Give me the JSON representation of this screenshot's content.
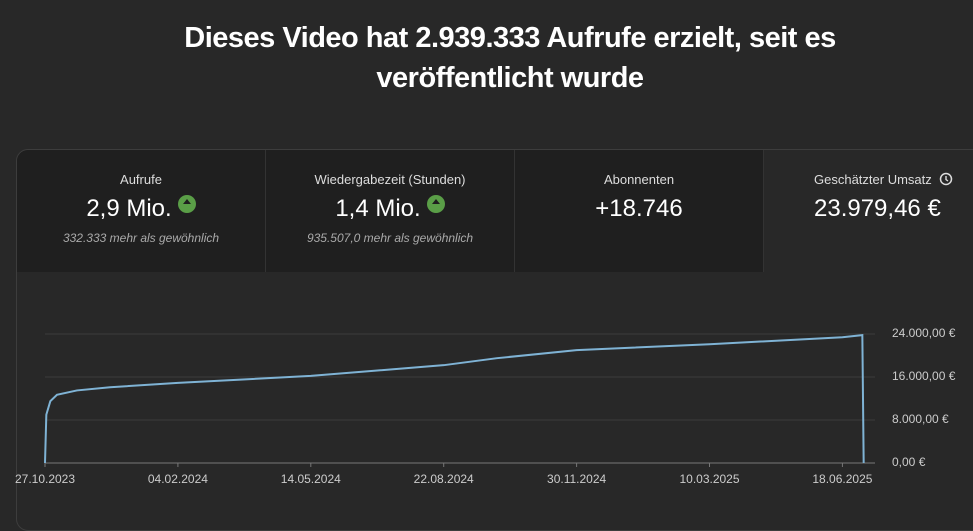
{
  "header": {
    "title": "Dieses Video hat 2.939.333 Aufrufe erzielt, seit es veröffentlicht wurde"
  },
  "cards": [
    {
      "label": "Aufrufe",
      "value": "2,9 Mio.",
      "note": "332.333 mehr als gewöhnlich"
    },
    {
      "label": "Wiedergabezeit (Stunden)",
      "value": "1,4 Mio.",
      "note": "935.507,0 mehr als gewöhnlich"
    },
    {
      "label": "Abonnenten",
      "value": "+18.746"
    },
    {
      "label": "Geschätzter Umsatz",
      "value": "23.979,46 €"
    }
  ],
  "chart_data": {
    "type": "line",
    "color": "#7fb3d5",
    "grid": true,
    "x": [
      "27.10.2023",
      "28.10.2023",
      "31.10.2023",
      "05.11.2023",
      "20.11.2023",
      "15.12.2023",
      "04.02.2024",
      "14.05.2024",
      "22.08.2024",
      "01.10.2024",
      "30.11.2024",
      "10.03.2025",
      "18.06.2025",
      "03.07.2025",
      "04.07.2025"
    ],
    "values": [
      0,
      9000,
      11500,
      12700,
      13500,
      14100,
      14900,
      16200,
      18200,
      19500,
      21000,
      22100,
      23400,
      23800,
      0
    ],
    "xlim": [
      "27.10.2023",
      "05.07.2025"
    ],
    "xticks": [
      "27.10.2023",
      "04.02.2024",
      "14.05.2024",
      "22.08.2024",
      "30.11.2024",
      "10.03.2025",
      "18.06.2025"
    ],
    "ylim": [
      0,
      24000
    ],
    "yticks": [
      {
        "value": 0,
        "label": "0,00 €"
      },
      {
        "value": 8000,
        "label": "8.000,00 €"
      },
      {
        "value": 16000,
        "label": "16.000,00 €"
      },
      {
        "value": 24000,
        "label": "24.000,00 €"
      }
    ]
  }
}
